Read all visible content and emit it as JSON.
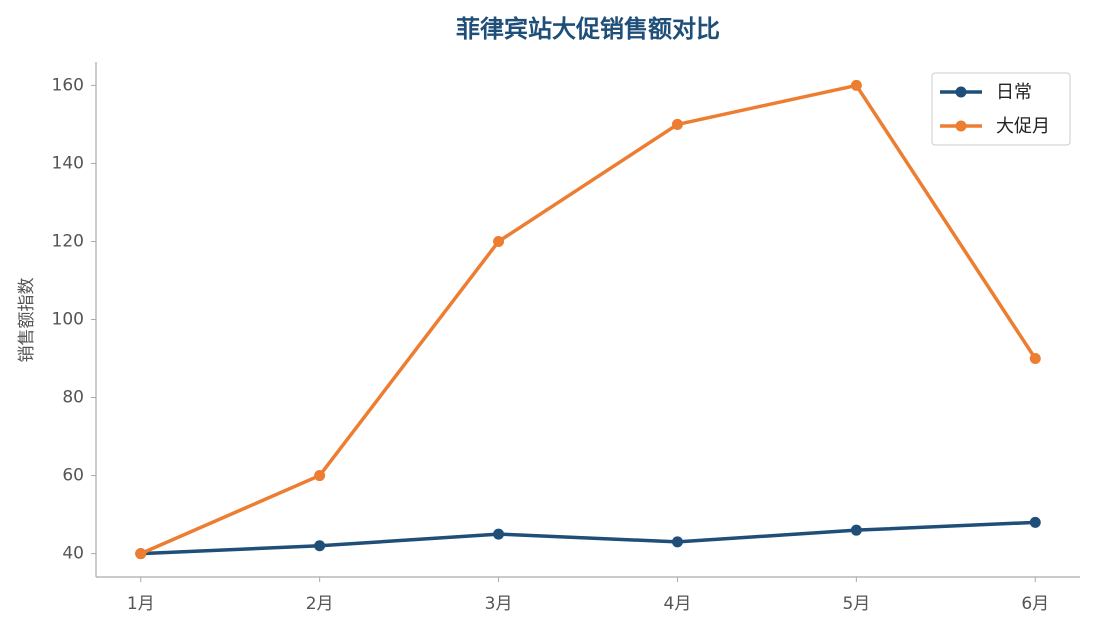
{
  "chart_data": {
    "type": "line",
    "title": "菲律宾站大促销售额对比",
    "y_label": "销售额指数",
    "categories": [
      "1月",
      "2月",
      "3月",
      "4月",
      "5月",
      "6月"
    ],
    "series": [
      {
        "name": "日常",
        "color": "#1f4e79",
        "values": [
          40,
          42,
          45,
          43,
          46,
          48
        ]
      },
      {
        "name": "大促月",
        "color": "#ed7d31",
        "values": [
          40,
          60,
          120,
          150,
          160,
          90
        ]
      }
    ],
    "ylim": [
      34,
      166
    ],
    "yticks": [
      40,
      60,
      80,
      100,
      120,
      140,
      160
    ],
    "grid": false,
    "legend": "upper right"
  }
}
